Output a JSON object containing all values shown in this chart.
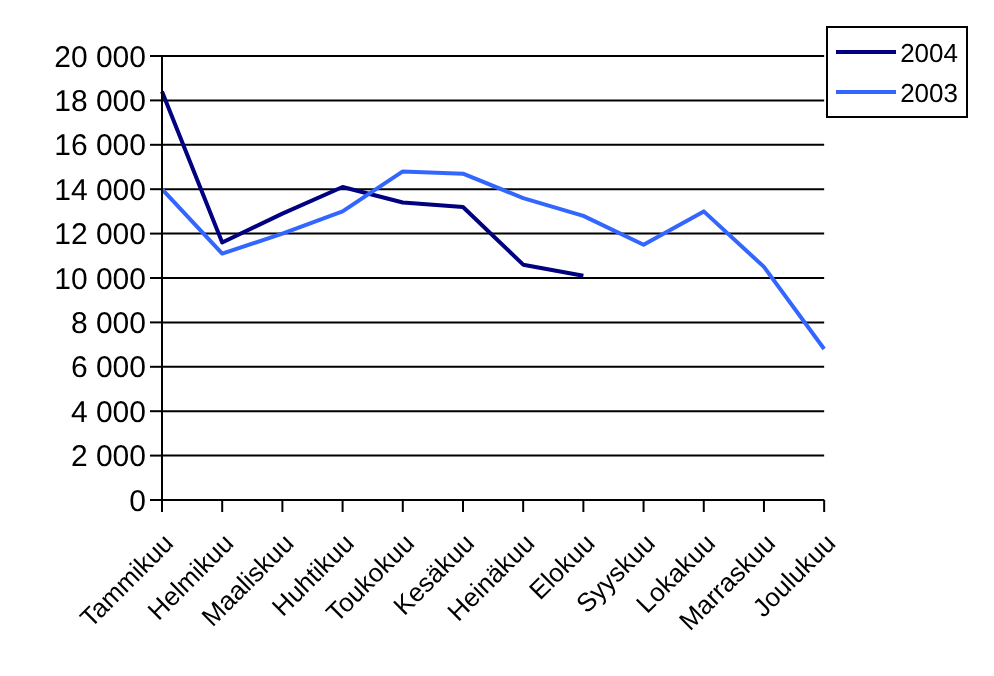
{
  "chart_data": {
    "type": "line",
    "categories": [
      "Tammikuu",
      "Helmikuu",
      "Maaliskuu",
      "Huhtikuu",
      "Toukokuu",
      "Kesäkuu",
      "Heinäkuu",
      "Elokuu",
      "Syyskuu",
      "Lokakuu",
      "Marraskuu",
      "Joulukuu"
    ],
    "series": [
      {
        "name": "2004",
        "color": "#000080",
        "values": [
          18400,
          11600,
          12900,
          14100,
          13400,
          13200,
          10600,
          10100,
          null,
          null,
          null,
          null
        ]
      },
      {
        "name": "2003",
        "color": "#3366ff",
        "values": [
          14000,
          11100,
          12000,
          13000,
          14800,
          14700,
          13600,
          12800,
          11500,
          13000,
          10500,
          6800
        ]
      }
    ],
    "ylim": [
      0,
      20000
    ],
    "yticks": [
      {
        "value": 0,
        "label": "0"
      },
      {
        "value": 2000,
        "label": "2 000"
      },
      {
        "value": 4000,
        "label": "4 000"
      },
      {
        "value": 6000,
        "label": "6 000"
      },
      {
        "value": 8000,
        "label": "8 000"
      },
      {
        "value": 10000,
        "label": "10 000"
      },
      {
        "value": 12000,
        "label": "12 000"
      },
      {
        "value": 14000,
        "label": "14 000"
      },
      {
        "value": 16000,
        "label": "16 000"
      },
      {
        "value": 18000,
        "label": "18 000"
      },
      {
        "value": 20000,
        "label": "20 000"
      }
    ],
    "grid": "y",
    "legend": "top right",
    "marker": "none",
    "line_style": "solid"
  }
}
